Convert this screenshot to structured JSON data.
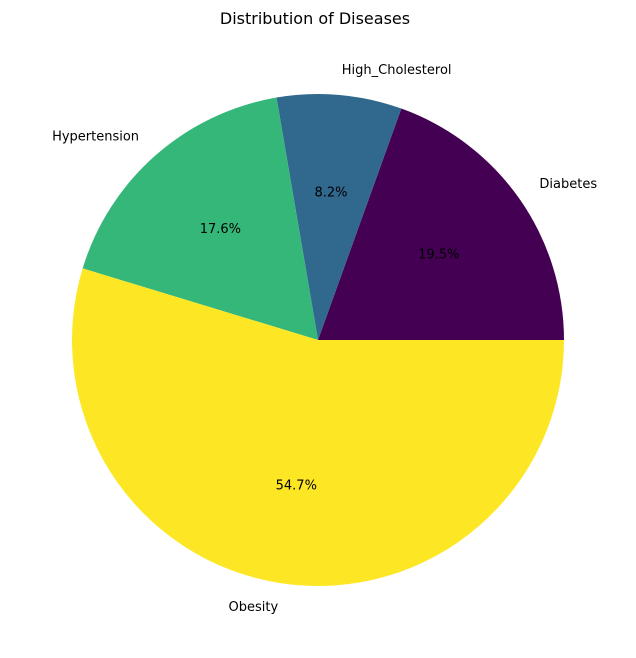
{
  "chart_data": {
    "type": "pie",
    "title": "Distribution of Diseases",
    "start_angle_deg": 0,
    "direction": "counterclockwise",
    "legend": "none",
    "slices": [
      {
        "label": "Diabetes",
        "value": 19.5,
        "pct_label": "19.5%",
        "color": "#440154"
      },
      {
        "label": "High_Cholesterol",
        "value": 8.2,
        "pct_label": "8.2%",
        "color": "#31688e"
      },
      {
        "label": "Hypertension",
        "value": 17.6,
        "pct_label": "17.6%",
        "color": "#35b779"
      },
      {
        "label": "Obesity",
        "value": 54.7,
        "pct_label": "54.7%",
        "color": "#fde725"
      }
    ]
  }
}
